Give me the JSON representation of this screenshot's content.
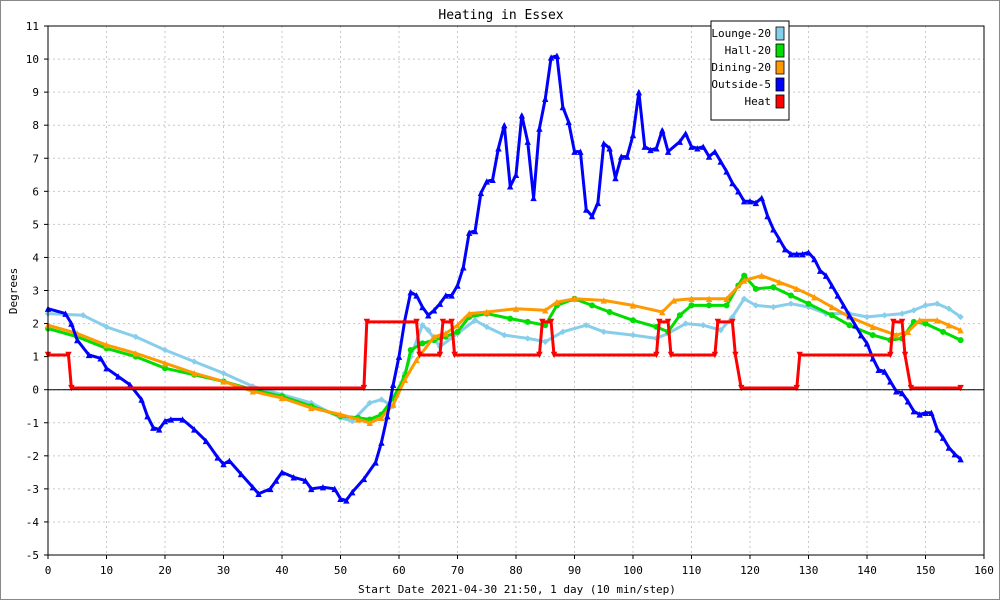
{
  "chart_data": {
    "type": "line",
    "title": "Heating in Essex",
    "xlabel": "Start Date 2021-04-30 21:50, 1 day (10 min/step)",
    "ylabel": "Degrees",
    "xlim": [
      0,
      160
    ],
    "ylim": [
      -5,
      11
    ],
    "xticks": [
      0,
      10,
      20,
      30,
      40,
      50,
      60,
      70,
      80,
      90,
      100,
      110,
      120,
      130,
      140,
      150,
      160
    ],
    "yticks": [
      -5,
      -4,
      -3,
      -2,
      -1,
      0,
      1,
      2,
      3,
      4,
      5,
      6,
      7,
      8,
      9,
      10,
      11
    ],
    "grid": true,
    "legend_position": "top-right",
    "series": [
      {
        "name": "Lounge-20",
        "color": "#87ceeb",
        "marker": "diamond",
        "points": [
          [
            0,
            2.3
          ],
          [
            6,
            2.25
          ],
          [
            10,
            1.9
          ],
          [
            15,
            1.6
          ],
          [
            20,
            1.2
          ],
          [
            25,
            0.85
          ],
          [
            30,
            0.5
          ],
          [
            35,
            0.1
          ],
          [
            40,
            -0.15
          ],
          [
            45,
            -0.4
          ],
          [
            50,
            -0.85
          ],
          [
            52,
            -0.95
          ],
          [
            55,
            -0.4
          ],
          [
            57,
            -0.3
          ],
          [
            59,
            -0.5
          ],
          [
            61,
            0.5
          ],
          [
            62,
            1.0
          ],
          [
            64,
            1.95
          ],
          [
            65,
            1.8
          ],
          [
            67,
            1.3
          ],
          [
            70,
            1.7
          ],
          [
            73,
            2.1
          ],
          [
            75,
            1.9
          ],
          [
            78,
            1.65
          ],
          [
            82,
            1.55
          ],
          [
            85,
            1.45
          ],
          [
            88,
            1.75
          ],
          [
            92,
            1.95
          ],
          [
            95,
            1.75
          ],
          [
            100,
            1.65
          ],
          [
            104,
            1.55
          ],
          [
            106,
            1.7
          ],
          [
            109,
            2.0
          ],
          [
            112,
            1.95
          ],
          [
            115,
            1.8
          ],
          [
            117,
            2.2
          ],
          [
            119,
            2.75
          ],
          [
            121,
            2.55
          ],
          [
            124,
            2.5
          ],
          [
            127,
            2.6
          ],
          [
            130,
            2.5
          ],
          [
            133,
            2.3
          ],
          [
            137,
            2.3
          ],
          [
            140,
            2.2
          ],
          [
            143,
            2.25
          ],
          [
            146,
            2.3
          ],
          [
            148,
            2.4
          ],
          [
            150,
            2.55
          ],
          [
            152,
            2.6
          ],
          [
            154,
            2.45
          ],
          [
            156,
            2.2
          ]
        ]
      },
      {
        "name": "Hall-20",
        "color": "#00dd00",
        "marker": "circle",
        "points": [
          [
            0,
            1.85
          ],
          [
            5,
            1.6
          ],
          [
            10,
            1.25
          ],
          [
            15,
            1.0
          ],
          [
            20,
            0.65
          ],
          [
            25,
            0.45
          ],
          [
            30,
            0.25
          ],
          [
            35,
            0.0
          ],
          [
            40,
            -0.2
          ],
          [
            45,
            -0.5
          ],
          [
            50,
            -0.8
          ],
          [
            53,
            -0.85
          ],
          [
            55,
            -0.9
          ],
          [
            57,
            -0.75
          ],
          [
            59,
            -0.25
          ],
          [
            61,
            0.4
          ],
          [
            62,
            1.2
          ],
          [
            64,
            1.4
          ],
          [
            66,
            1.5
          ],
          [
            68,
            1.6
          ],
          [
            70,
            1.75
          ],
          [
            72,
            2.2
          ],
          [
            75,
            2.3
          ],
          [
            79,
            2.15
          ],
          [
            82,
            2.05
          ],
          [
            85,
            1.95
          ],
          [
            87,
            2.55
          ],
          [
            90,
            2.75
          ],
          [
            93,
            2.55
          ],
          [
            96,
            2.35
          ],
          [
            100,
            2.1
          ],
          [
            104,
            1.9
          ],
          [
            106,
            1.75
          ],
          [
            108,
            2.25
          ],
          [
            110,
            2.55
          ],
          [
            113,
            2.55
          ],
          [
            116,
            2.55
          ],
          [
            118,
            3.15
          ],
          [
            119,
            3.45
          ],
          [
            121,
            3.05
          ],
          [
            124,
            3.1
          ],
          [
            127,
            2.85
          ],
          [
            130,
            2.6
          ],
          [
            134,
            2.25
          ],
          [
            137,
            1.95
          ],
          [
            141,
            1.65
          ],
          [
            144,
            1.5
          ],
          [
            146,
            1.55
          ],
          [
            148,
            2.05
          ],
          [
            150,
            2.0
          ],
          [
            153,
            1.75
          ],
          [
            156,
            1.5
          ]
        ]
      },
      {
        "name": "Dining-20",
        "color": "#ff9900",
        "marker": "triangle",
        "points": [
          [
            0,
            1.95
          ],
          [
            5,
            1.7
          ],
          [
            10,
            1.35
          ],
          [
            15,
            1.1
          ],
          [
            20,
            0.8
          ],
          [
            25,
            0.5
          ],
          [
            30,
            0.25
          ],
          [
            35,
            -0.05
          ],
          [
            40,
            -0.25
          ],
          [
            45,
            -0.55
          ],
          [
            50,
            -0.75
          ],
          [
            53,
            -0.9
          ],
          [
            55,
            -1.0
          ],
          [
            57,
            -0.85
          ],
          [
            59,
            -0.45
          ],
          [
            61,
            0.3
          ],
          [
            63,
            0.9
          ],
          [
            66,
            1.6
          ],
          [
            68,
            1.7
          ],
          [
            70,
            1.95
          ],
          [
            72,
            2.3
          ],
          [
            75,
            2.35
          ],
          [
            80,
            2.45
          ],
          [
            85,
            2.4
          ],
          [
            87,
            2.65
          ],
          [
            90,
            2.75
          ],
          [
            95,
            2.7
          ],
          [
            100,
            2.55
          ],
          [
            105,
            2.35
          ],
          [
            107,
            2.7
          ],
          [
            110,
            2.75
          ],
          [
            113,
            2.75
          ],
          [
            116,
            2.75
          ],
          [
            119,
            3.3
          ],
          [
            122,
            3.45
          ],
          [
            125,
            3.25
          ],
          [
            128,
            3.05
          ],
          [
            131,
            2.8
          ],
          [
            134,
            2.5
          ],
          [
            137,
            2.2
          ],
          [
            141,
            1.9
          ],
          [
            145,
            1.65
          ],
          [
            147,
            1.75
          ],
          [
            149,
            2.1
          ],
          [
            152,
            2.1
          ],
          [
            154,
            1.95
          ],
          [
            156,
            1.8
          ]
        ]
      },
      {
        "name": "Outside-5",
        "color": "#0000ff",
        "marker": "triangle",
        "points": [
          [
            0,
            2.45
          ],
          [
            3,
            2.3
          ],
          [
            4,
            2.0
          ],
          [
            5,
            1.5
          ],
          [
            7,
            1.05
          ],
          [
            9,
            0.95
          ],
          [
            10,
            0.65
          ],
          [
            12,
            0.4
          ],
          [
            14,
            0.15
          ],
          [
            16,
            -0.3
          ],
          [
            17,
            -0.8
          ],
          [
            18,
            -1.15
          ],
          [
            19,
            -1.2
          ],
          [
            20,
            -0.95
          ],
          [
            21,
            -0.9
          ],
          [
            23,
            -0.9
          ],
          [
            25,
            -1.2
          ],
          [
            27,
            -1.55
          ],
          [
            29,
            -2.05
          ],
          [
            30,
            -2.25
          ],
          [
            31,
            -2.15
          ],
          [
            33,
            -2.55
          ],
          [
            35,
            -2.95
          ],
          [
            36,
            -3.15
          ],
          [
            38,
            -3.0
          ],
          [
            39,
            -2.75
          ],
          [
            40,
            -2.5
          ],
          [
            42,
            -2.65
          ],
          [
            44,
            -2.75
          ],
          [
            45,
            -3.0
          ],
          [
            47,
            -2.95
          ],
          [
            49,
            -3.0
          ],
          [
            50,
            -3.3
          ],
          [
            51,
            -3.35
          ],
          [
            52,
            -3.1
          ],
          [
            54,
            -2.7
          ],
          [
            56,
            -2.2
          ],
          [
            57,
            -1.6
          ],
          [
            58,
            -0.8
          ],
          [
            59,
            0.15
          ],
          [
            60,
            1.0
          ],
          [
            61,
            2.1
          ],
          [
            62,
            2.95
          ],
          [
            63,
            2.85
          ],
          [
            64,
            2.5
          ],
          [
            65,
            2.25
          ],
          [
            66,
            2.4
          ],
          [
            67,
            2.6
          ],
          [
            68,
            2.85
          ],
          [
            69,
            2.85
          ],
          [
            70,
            3.15
          ],
          [
            71,
            3.7
          ],
          [
            72,
            4.75
          ],
          [
            73,
            4.8
          ],
          [
            74,
            5.95
          ],
          [
            75,
            6.3
          ],
          [
            76,
            6.35
          ],
          [
            77,
            7.3
          ],
          [
            78,
            8.0
          ],
          [
            79,
            6.15
          ],
          [
            80,
            6.5
          ],
          [
            81,
            8.3
          ],
          [
            82,
            7.5
          ],
          [
            83,
            5.8
          ],
          [
            84,
            7.9
          ],
          [
            85,
            8.8
          ],
          [
            86,
            10.05
          ],
          [
            87,
            10.1
          ],
          [
            88,
            8.55
          ],
          [
            89,
            8.1
          ],
          [
            90,
            7.2
          ],
          [
            91,
            7.2
          ],
          [
            92,
            5.45
          ],
          [
            93,
            5.25
          ],
          [
            94,
            5.65
          ],
          [
            95,
            7.45
          ],
          [
            96,
            7.3
          ],
          [
            97,
            6.4
          ],
          [
            98,
            7.05
          ],
          [
            99,
            7.05
          ],
          [
            100,
            7.7
          ],
          [
            101,
            9.0
          ],
          [
            102,
            7.35
          ],
          [
            103,
            7.25
          ],
          [
            104,
            7.3
          ],
          [
            105,
            7.85
          ],
          [
            106,
            7.2
          ],
          [
            108,
            7.5
          ],
          [
            109,
            7.75
          ],
          [
            110,
            7.35
          ],
          [
            111,
            7.3
          ],
          [
            112,
            7.35
          ],
          [
            113,
            7.05
          ],
          [
            114,
            7.2
          ],
          [
            115,
            6.9
          ],
          [
            116,
            6.6
          ],
          [
            117,
            6.25
          ],
          [
            118,
            6.0
          ],
          [
            119,
            5.7
          ],
          [
            120,
            5.7
          ],
          [
            121,
            5.65
          ],
          [
            122,
            5.8
          ],
          [
            123,
            5.25
          ],
          [
            124,
            4.85
          ],
          [
            125,
            4.55
          ],
          [
            126,
            4.25
          ],
          [
            127,
            4.1
          ],
          [
            128,
            4.1
          ],
          [
            129,
            4.1
          ],
          [
            130,
            4.15
          ],
          [
            131,
            3.95
          ],
          [
            132,
            3.6
          ],
          [
            133,
            3.45
          ],
          [
            134,
            3.15
          ],
          [
            135,
            2.85
          ],
          [
            136,
            2.55
          ],
          [
            137,
            2.25
          ],
          [
            138,
            1.95
          ],
          [
            139,
            1.65
          ],
          [
            140,
            1.4
          ],
          [
            141,
            0.95
          ],
          [
            142,
            0.6
          ],
          [
            143,
            0.55
          ],
          [
            144,
            0.25
          ],
          [
            145,
            -0.05
          ],
          [
            146,
            -0.1
          ],
          [
            147,
            -0.35
          ],
          [
            148,
            -0.65
          ],
          [
            149,
            -0.75
          ],
          [
            150,
            -0.7
          ],
          [
            151,
            -0.7
          ],
          [
            152,
            -1.2
          ],
          [
            153,
            -1.45
          ],
          [
            154,
            -1.75
          ],
          [
            155,
            -1.95
          ],
          [
            156,
            -2.1
          ]
        ]
      },
      {
        "name": "Heat",
        "color": "#ff0000",
        "marker": "triangle-down",
        "points": [
          [
            0,
            1.05
          ],
          [
            3.5,
            1.05
          ],
          [
            4,
            0.05
          ],
          [
            54,
            0.05
          ],
          [
            54.5,
            2.05
          ],
          [
            63,
            2.05
          ],
          [
            63.5,
            1.05
          ],
          [
            67,
            1.05
          ],
          [
            67.5,
            2.05
          ],
          [
            69,
            2.05
          ],
          [
            69.5,
            1.05
          ],
          [
            84,
            1.05
          ],
          [
            84.5,
            2.05
          ],
          [
            86,
            2.05
          ],
          [
            86.5,
            1.05
          ],
          [
            104,
            1.05
          ],
          [
            104.5,
            2.05
          ],
          [
            106,
            2.05
          ],
          [
            106.5,
            1.05
          ],
          [
            114,
            1.05
          ],
          [
            114.5,
            2.05
          ],
          [
            117,
            2.05
          ],
          [
            117.5,
            1.05
          ],
          [
            118.5,
            0.05
          ],
          [
            128,
            0.05
          ],
          [
            128.5,
            1.05
          ],
          [
            144,
            1.05
          ],
          [
            144.5,
            2.05
          ],
          [
            146,
            2.05
          ],
          [
            146.5,
            1.05
          ],
          [
            147.5,
            0.05
          ],
          [
            156,
            0.05
          ]
        ]
      }
    ]
  }
}
